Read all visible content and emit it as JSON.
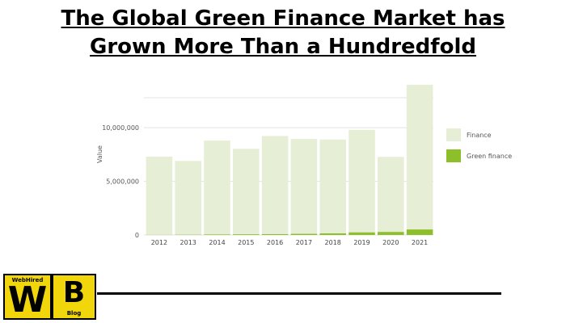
{
  "page": {
    "title_line1": "The Global Green Finance Market has",
    "title_line2": "Grown More Than a Hundredfold"
  },
  "logo": {
    "brand": "WebHired",
    "w_letter": "W",
    "b_letter": "B",
    "blog": "Blog",
    "color": "#f2d60c"
  },
  "chart_data": {
    "type": "bar",
    "stacked": true,
    "categories": [
      "2012",
      "2013",
      "2014",
      "2015",
      "2016",
      "2017",
      "2018",
      "2019",
      "2020",
      "2021"
    ],
    "series": [
      {
        "name": "Green finance",
        "color": "#8dbf2a",
        "values": [
          20000,
          30000,
          60000,
          70000,
          90000,
          110000,
          160000,
          250000,
          290000,
          520000
        ]
      },
      {
        "name": "Finance",
        "color": "#e6eed6",
        "values": [
          7280000,
          6870000,
          8740000,
          7960000,
          9130000,
          8840000,
          8740000,
          9550000,
          6990000,
          13480000
        ]
      }
    ],
    "ylabel": "Value",
    "xlabel": "",
    "yticks": [
      0,
      5000000,
      10000000
    ],
    "ytick_labels": [
      "0",
      "5,000,000",
      "10,000,000"
    ],
    "ylim": [
      0,
      14000000
    ],
    "grid": true,
    "legend_position": "right"
  }
}
